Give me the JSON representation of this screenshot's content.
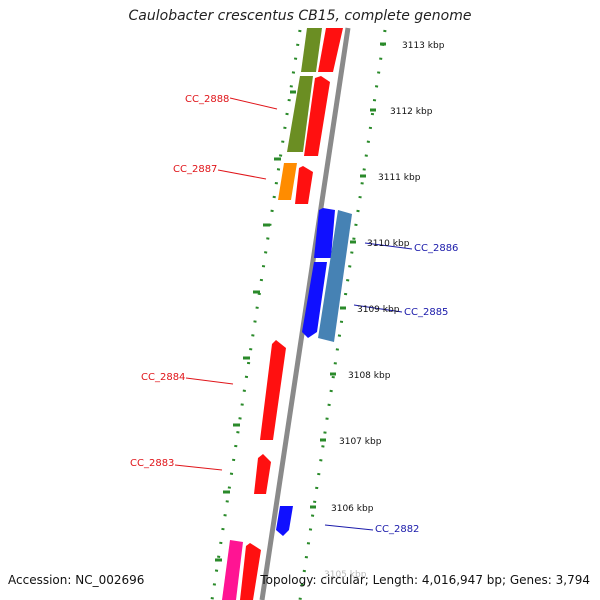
{
  "title": "Caulobacter crescentus CB15, complete genome",
  "accession_text": "Accession: NC_002696",
  "topology_text": "Topology: circular; Length: 4,016,947 bp; Genes: 3,794",
  "colors": {
    "backbone": "#8a8a8a",
    "tick_dots": "#2a8a2a",
    "tick_major": "#2a8a2a",
    "forward_label": "#e0151a",
    "reverse_label": "#1a1aaa",
    "gene_red": "#ff1010",
    "gene_olive": "#6b8e23",
    "gene_orange": "#ff8c00",
    "gene_blue": "#1010ff",
    "gene_steelblue": "#4682b4",
    "gene_magenta": "#ff1493"
  },
  "scale_labels": [
    "3113 kbp",
    "3112 kbp",
    "3111 kbp",
    "3110 kbp",
    "3109 kbp",
    "3108 kbp",
    "3107 kbp",
    "3106 kbp",
    "3105 kbp"
  ],
  "gene_labels": {
    "cc2888": "CC_2888",
    "cc2887": "CC_2887",
    "cc2886": "CC_2886",
    "cc2885": "CC_2885",
    "cc2884": "CC_2884",
    "cc2883": "CC_2883",
    "cc2882": "CC_2882"
  }
}
